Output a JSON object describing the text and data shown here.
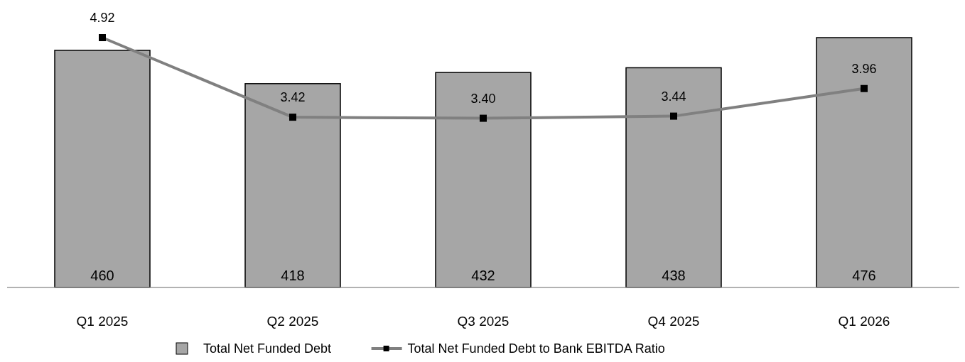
{
  "chart_data": {
    "type": "bar",
    "categories": [
      "Q1 2025",
      "Q2 2025",
      "Q3 2025",
      "Q4 2025",
      "Q1 2026"
    ],
    "series": [
      {
        "name": "Total Net Funded Debt",
        "type": "bar",
        "color": "#a6a6a6",
        "values": [
          460,
          418,
          432,
          438,
          476
        ]
      },
      {
        "name": "Total Net Funded Debt to Bank EBITDA Ratio",
        "type": "line",
        "axis": "y2",
        "color": "#808080",
        "values": [
          4.92,
          3.42,
          3.4,
          3.44,
          3.96
        ],
        "value_labels": [
          "4.92",
          "3.42",
          "3.40",
          "3.44",
          "3.96"
        ]
      }
    ],
    "ylim": [
      161,
      476
    ],
    "y2lim": [
      0.21,
      4.92
    ],
    "tick_labels": "x",
    "data_labels": true,
    "legend": "bottom",
    "marker": "square",
    "line_style": "solid"
  }
}
